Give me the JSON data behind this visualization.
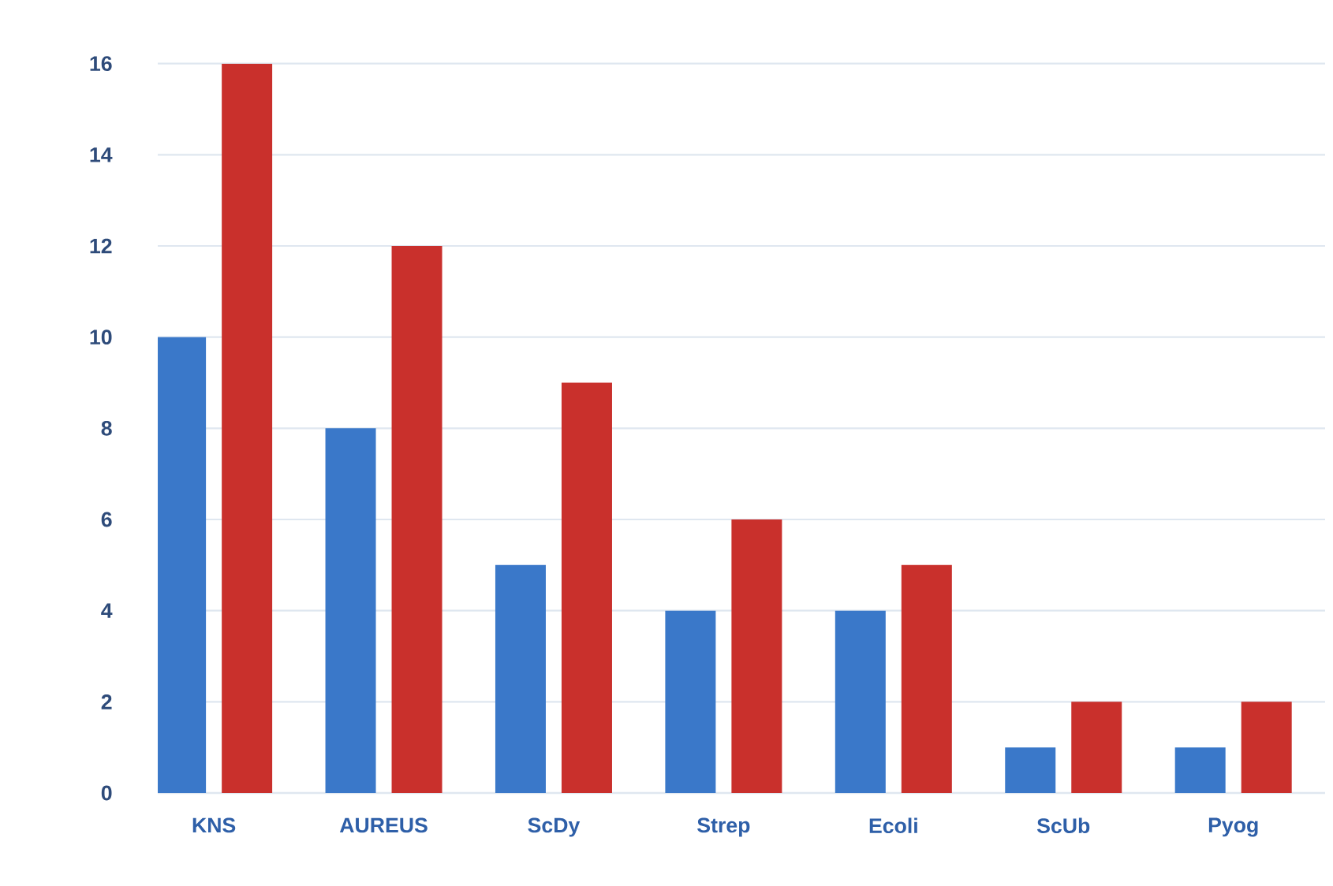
{
  "chart_data": {
    "type": "bar",
    "categories": [
      "KNS",
      "AUREUS",
      "ScDy",
      "Strep",
      "Ecoli",
      "ScUb",
      "Pyog"
    ],
    "series": [
      {
        "color": "#3a78c9",
        "values": [
          10,
          8,
          5,
          4,
          4,
          1,
          1
        ]
      },
      {
        "color": "#c9302c",
        "values": [
          16,
          12,
          9,
          6,
          5,
          2,
          2
        ]
      }
    ],
    "ylim": [
      0,
      16
    ],
    "yticks": [
      0,
      2,
      4,
      6,
      8,
      10,
      12,
      14,
      16
    ],
    "grid": "y"
  }
}
